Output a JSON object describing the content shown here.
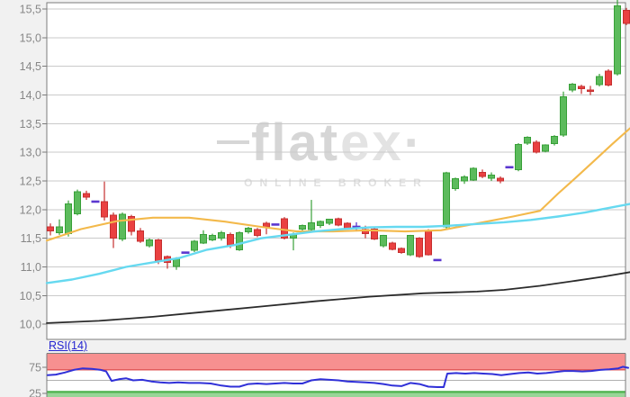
{
  "watermark": {
    "part1": "flat",
    "part2": "ex",
    "dot": "·",
    "subtitle": "ONLINE BROKER"
  },
  "rsi": {
    "label": "RSI(14)"
  },
  "colors": {
    "background": "#f1f1f1",
    "plot_bg": "#ffffff",
    "gridline": "#cacaca",
    "panel_border": "#7c7c7c",
    "tick_label": "#878787",
    "candle_up": "#5cbb5c",
    "candle_up_border": "#38a038",
    "candle_down": "#ea4141",
    "candle_down_border": "#c52f2f",
    "doji": "#5a36cf",
    "ma_slow": "#f3b94b",
    "ma_fast": "#66d9f0",
    "trend": "#2b2b2b",
    "rsi_line": "#3030d8",
    "rsi_overbought_fill": "#f79090",
    "rsi_overbought_edge": "#e25c5c",
    "rsi_oversold_fill": "#97d597",
    "rsi_oversold_edge": "#4db24d",
    "rsi_midline": "#b0b0b0"
  },
  "chart_data": [
    {
      "type": "candlestick",
      "panel": "main",
      "title": "",
      "xlabel": "",
      "ylabel": "",
      "grid": "horizontal-only",
      "ylim": [
        9.72,
        15.66
      ],
      "y_ticks": [
        {
          "label": "15,5",
          "value": 15.5
        },
        {
          "label": "15,0",
          "value": 15.0
        },
        {
          "label": "14,5",
          "value": 14.5
        },
        {
          "label": "14,0",
          "value": 14.0
        },
        {
          "label": "13,5",
          "value": 13.5
        },
        {
          "label": "13,0",
          "value": 13.0
        },
        {
          "label": "12,5",
          "value": 12.5
        },
        {
          "label": "12,0",
          "value": 12.0
        },
        {
          "label": "11,5",
          "value": 11.5
        },
        {
          "label": "11,0",
          "value": 11.0
        },
        {
          "label": "10,5",
          "value": 10.5
        },
        {
          "label": "10,0",
          "value": 10.0
        }
      ],
      "candles_note": "arrays: [open,high,low,close]; [value] = doji dash; [value,high,low] = doji with range",
      "candles": [
        [
          11.7,
          11.76,
          11.55,
          11.63
        ],
        [
          11.6,
          11.83,
          11.56,
          11.7
        ],
        [
          11.58,
          12.16,
          11.53,
          12.1
        ],
        [
          11.93,
          12.35,
          11.9,
          12.31
        ],
        [
          12.28,
          12.33,
          12.17,
          12.22
        ],
        [
          12.14
        ],
        [
          12.14,
          12.49,
          11.81,
          11.87
        ],
        [
          11.9,
          11.95,
          11.33,
          11.5
        ],
        [
          11.49,
          11.95,
          11.45,
          11.92
        ],
        [
          11.88,
          11.91,
          11.55,
          11.62
        ],
        [
          11.63,
          11.68,
          11.42,
          11.45
        ],
        [
          11.37,
          11.5,
          11.34,
          11.47
        ],
        [
          11.47,
          11.49,
          11.05,
          11.1
        ],
        [
          11.18,
          11.2,
          10.97,
          11.08
        ],
        [
          11.01,
          11.17,
          10.95,
          11.15
        ],
        [
          11.25
        ],
        [
          11.29,
          11.47,
          11.26,
          11.45
        ],
        [
          11.42,
          11.64,
          11.4,
          11.57
        ],
        [
          11.47,
          11.58,
          11.45,
          11.55
        ],
        [
          11.5,
          11.63,
          11.46,
          11.6
        ],
        [
          11.57,
          11.6,
          11.33,
          11.37
        ],
        [
          11.3,
          11.62,
          11.28,
          11.6
        ],
        [
          11.61,
          11.7,
          11.58,
          11.68
        ],
        [
          11.65,
          11.68,
          11.52,
          11.55
        ],
        [
          11.76,
          11.79,
          11.57,
          11.7
        ],
        [
          11.74
        ],
        [
          11.84,
          11.87,
          11.48,
          11.5
        ],
        [
          11.5,
          11.6,
          11.29,
          11.57
        ],
        [
          11.66,
          11.74,
          11.62,
          11.72
        ],
        [
          11.65,
          12.17,
          11.62,
          11.77
        ],
        [
          11.72,
          11.81,
          11.68,
          11.79
        ],
        [
          11.76,
          11.84,
          11.73,
          11.83
        ],
        [
          11.84,
          11.86,
          11.71,
          11.73
        ],
        [
          11.76,
          11.78,
          11.66,
          11.68
        ],
        [
          11.7,
          11.78,
          11.62
        ],
        [
          11.65,
          11.72,
          11.5,
          11.58
        ],
        [
          11.66,
          11.68,
          11.47,
          11.49
        ],
        [
          11.37,
          11.56,
          11.34,
          11.55
        ],
        [
          11.42,
          11.44,
          11.29,
          11.31
        ],
        [
          11.32,
          11.34,
          11.23,
          11.25
        ],
        [
          11.21,
          11.56,
          11.19,
          11.55
        ],
        [
          11.5,
          11.52,
          11.16,
          11.18
        ],
        [
          11.63,
          11.66,
          11.2,
          11.21
        ],
        [
          11.12
        ],
        [
          11.7,
          12.66,
          11.67,
          12.64
        ],
        [
          12.37,
          12.56,
          12.33,
          12.54
        ],
        [
          12.5,
          12.6,
          12.45,
          12.57
        ],
        [
          12.52,
          12.74,
          12.5,
          12.72
        ],
        [
          12.65,
          12.7,
          12.55,
          12.58
        ],
        [
          12.55,
          12.65,
          12.5,
          12.6
        ],
        [
          12.55,
          12.58,
          12.46,
          12.5
        ],
        [
          12.74
        ],
        [
          12.7,
          13.16,
          12.67,
          13.14
        ],
        [
          13.16,
          13.28,
          13.13,
          13.26
        ],
        [
          13.18,
          13.21,
          12.98,
          13.0
        ],
        [
          13.02,
          13.14,
          13.0,
          13.13
        ],
        [
          13.15,
          13.3,
          13.12,
          13.28
        ],
        [
          13.3,
          14.06,
          13.27,
          13.97
        ],
        [
          14.09,
          14.21,
          14.05,
          14.19
        ],
        [
          14.15,
          14.18,
          14.02,
          14.11
        ],
        [
          14.09,
          14.16,
          14.0,
          14.06
        ],
        [
          14.18,
          14.37,
          14.15,
          14.32
        ],
        [
          14.42,
          14.45,
          14.15,
          14.17
        ],
        [
          14.37,
          15.66,
          14.34,
          15.56
        ],
        [
          15.48,
          15.52,
          15.22,
          15.25
        ]
      ],
      "overlays": [
        {
          "name": "ma-slow-orange",
          "points": [
            [
              52,
              11.46
            ],
            [
              90,
              11.66
            ],
            [
              130,
              11.8
            ],
            [
              170,
              11.86
            ],
            [
              210,
              11.86
            ],
            [
              250,
              11.79
            ],
            [
              290,
              11.7
            ],
            [
              330,
              11.62
            ],
            [
              370,
              11.62
            ],
            [
              410,
              11.64
            ],
            [
              450,
              11.62
            ],
            [
              490,
              11.64
            ],
            [
              530,
              11.76
            ],
            [
              570,
              11.88
            ],
            [
              600,
              11.98
            ],
            [
              620,
              12.28
            ],
            [
              640,
              12.56
            ],
            [
              660,
              12.85
            ],
            [
              680,
              13.14
            ],
            [
              700,
              13.42
            ]
          ]
        },
        {
          "name": "ma-fast-cyan",
          "points": [
            [
              52,
              10.72
            ],
            [
              80,
              10.78
            ],
            [
              110,
              10.88
            ],
            [
              140,
              11.0
            ],
            [
              170,
              11.08
            ],
            [
              200,
              11.16
            ],
            [
              230,
              11.3
            ],
            [
              260,
              11.38
            ],
            [
              290,
              11.5
            ],
            [
              320,
              11.56
            ],
            [
              350,
              11.62
            ],
            [
              380,
              11.66
            ],
            [
              410,
              11.69
            ],
            [
              440,
              11.7
            ],
            [
              470,
              11.7
            ],
            [
              500,
              11.72
            ],
            [
              530,
              11.75
            ],
            [
              560,
              11.78
            ],
            [
              590,
              11.82
            ],
            [
              620,
              11.88
            ],
            [
              650,
              11.95
            ],
            [
              680,
              12.04
            ],
            [
              700,
              12.1
            ]
          ]
        },
        {
          "name": "trend-black",
          "points": [
            [
              52,
              10.02
            ],
            [
              110,
              10.06
            ],
            [
              170,
              10.13
            ],
            [
              230,
              10.22
            ],
            [
              290,
              10.31
            ],
            [
              350,
              10.4
            ],
            [
              410,
              10.48
            ],
            [
              470,
              10.54
            ],
            [
              530,
              10.57
            ],
            [
              560,
              10.6
            ],
            [
              600,
              10.67
            ],
            [
              640,
              10.76
            ],
            [
              670,
              10.83
            ],
            [
              700,
              10.91
            ]
          ]
        }
      ]
    },
    {
      "type": "line",
      "panel": "rsi",
      "name": "RSI(14)",
      "ylim": [
        0,
        100
      ],
      "y_ticks": [
        {
          "label": "75",
          "value": 75
        },
        {
          "label": "25",
          "value": 25
        }
      ],
      "bands": [
        {
          "name": "overbought",
          "from": 70,
          "to": 100
        },
        {
          "name": "oversold",
          "from": 0,
          "to": 30
        }
      ],
      "midline_value": 50,
      "points": [
        [
          53,
          60
        ],
        [
          62,
          61
        ],
        [
          72,
          65
        ],
        [
          82,
          70
        ],
        [
          92,
          73
        ],
        [
          102,
          72
        ],
        [
          112,
          70
        ],
        [
          118,
          67
        ],
        [
          124,
          49
        ],
        [
          132,
          52
        ],
        [
          140,
          54
        ],
        [
          148,
          50
        ],
        [
          158,
          51
        ],
        [
          168,
          48
        ],
        [
          178,
          46
        ],
        [
          188,
          45
        ],
        [
          198,
          46
        ],
        [
          210,
          45
        ],
        [
          222,
          45
        ],
        [
          234,
          44
        ],
        [
          246,
          40
        ],
        [
          256,
          38
        ],
        [
          266,
          38
        ],
        [
          276,
          43
        ],
        [
          286,
          44
        ],
        [
          296,
          43
        ],
        [
          306,
          44
        ],
        [
          316,
          45
        ],
        [
          326,
          44
        ],
        [
          336,
          44
        ],
        [
          346,
          50
        ],
        [
          356,
          52
        ],
        [
          366,
          51
        ],
        [
          376,
          50
        ],
        [
          386,
          48
        ],
        [
          396,
          47
        ],
        [
          406,
          46
        ],
        [
          416,
          45
        ],
        [
          426,
          43
        ],
        [
          436,
          40
        ],
        [
          446,
          39
        ],
        [
          456,
          45
        ],
        [
          466,
          43
        ],
        [
          476,
          38
        ],
        [
          486,
          37
        ],
        [
          493,
          37
        ],
        [
          497,
          63
        ],
        [
          507,
          64
        ],
        [
          517,
          63
        ],
        [
          527,
          64
        ],
        [
          537,
          63
        ],
        [
          547,
          62
        ],
        [
          557,
          60
        ],
        [
          567,
          62
        ],
        [
          577,
          64
        ],
        [
          587,
          65
        ],
        [
          597,
          63
        ],
        [
          607,
          64
        ],
        [
          617,
          66
        ],
        [
          627,
          68
        ],
        [
          637,
          68
        ],
        [
          647,
          67
        ],
        [
          657,
          68
        ],
        [
          667,
          70
        ],
        [
          677,
          71
        ],
        [
          687,
          73
        ],
        [
          692,
          76
        ],
        [
          698,
          74
        ]
      ]
    }
  ]
}
